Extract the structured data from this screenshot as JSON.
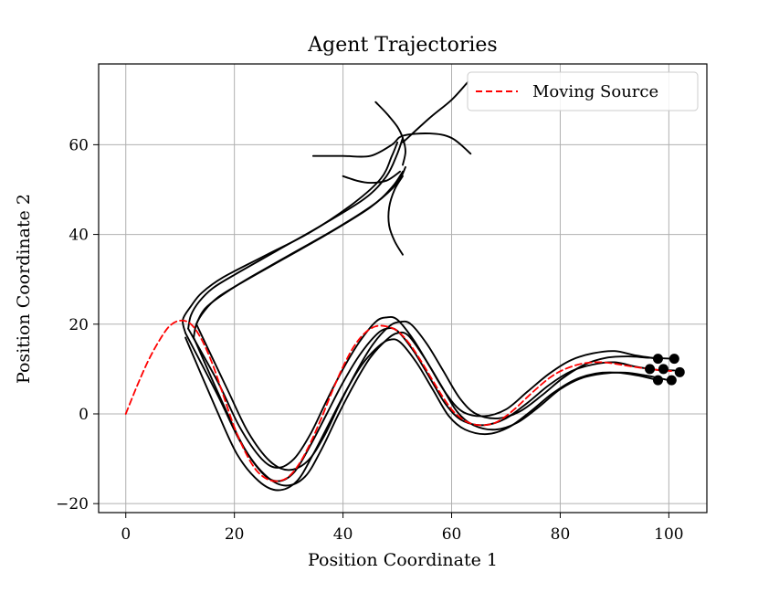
{
  "chart_data": {
    "type": "line",
    "title": "Agent Trajectories",
    "xlabel": "Position Coordinate 1",
    "ylabel": "Position Coordinate 2",
    "xlim": [
      -5,
      107
    ],
    "ylim": [
      -22,
      78
    ],
    "xticks": [
      0,
      20,
      40,
      60,
      80,
      100
    ],
    "yticks": [
      -20,
      0,
      20,
      40,
      60
    ],
    "xtick_labels": [
      "0",
      "20",
      "40",
      "60",
      "80",
      "100"
    ],
    "ytick_labels": [
      "−20",
      "0",
      "20",
      "40",
      "60"
    ],
    "grid": true,
    "legend_position": "top-right",
    "colors": {
      "source": "#ff0000",
      "agents": "#000000",
      "grid": "#b0b0b0"
    },
    "series": [
      {
        "name": "Moving Source",
        "style": "dashed",
        "color": "#ff0000",
        "points": [
          [
            0,
            0
          ],
          [
            2,
            6
          ],
          [
            4,
            11.5
          ],
          [
            6,
            16
          ],
          [
            8,
            19.5
          ],
          [
            10,
            20.8
          ],
          [
            12,
            20
          ],
          [
            14,
            16.5
          ],
          [
            16,
            11
          ],
          [
            18,
            4
          ],
          [
            20,
            -3
          ],
          [
            22,
            -8.5
          ],
          [
            24,
            -12.5
          ],
          [
            26,
            -14.5
          ],
          [
            28,
            -15
          ],
          [
            30,
            -14
          ],
          [
            32,
            -11
          ],
          [
            34,
            -6.5
          ],
          [
            36,
            -1
          ],
          [
            38,
            5
          ],
          [
            40,
            10.5
          ],
          [
            42,
            15
          ],
          [
            44,
            18
          ],
          [
            46,
            19.5
          ],
          [
            48,
            19.5
          ],
          [
            50,
            18.5
          ],
          [
            52,
            16
          ],
          [
            54,
            12.5
          ],
          [
            56,
            8.5
          ],
          [
            58,
            4.5
          ],
          [
            60,
            1
          ],
          [
            62,
            -1.2
          ],
          [
            64,
            -2.3
          ],
          [
            66,
            -2.5
          ],
          [
            68,
            -2
          ],
          [
            70,
            -0.5
          ],
          [
            72,
            1.5
          ],
          [
            74,
            3.8
          ],
          [
            76,
            6
          ],
          [
            78,
            8
          ],
          [
            80,
            9.5
          ],
          [
            82,
            10.5
          ],
          [
            84,
            11.2
          ],
          [
            86,
            11.5
          ],
          [
            88,
            11.5
          ],
          [
            90,
            11.2
          ],
          [
            92,
            10.8
          ],
          [
            94,
            10.4
          ],
          [
            96,
            10.1
          ],
          [
            98,
            9.8
          ],
          [
            100,
            9.6
          ],
          [
            101,
            9.5
          ]
        ]
      },
      {
        "name": "",
        "style": "solid",
        "color": "#000000",
        "points": [
          [
            11,
            18
          ],
          [
            17,
            4
          ],
          [
            21,
            -6
          ],
          [
            25,
            -13
          ],
          [
            28,
            -15
          ],
          [
            31,
            -13
          ],
          [
            34,
            -7
          ],
          [
            37,
            0
          ],
          [
            40,
            7
          ],
          [
            43,
            13
          ],
          [
            46,
            17.5
          ],
          [
            48,
            19
          ],
          [
            50,
            18.5
          ],
          [
            53,
            14
          ],
          [
            56,
            8
          ],
          [
            59,
            2
          ],
          [
            62,
            -1.5
          ],
          [
            66,
            -2.5
          ],
          [
            70,
            -1
          ],
          [
            74,
            2.5
          ],
          [
            78,
            6.5
          ],
          [
            82,
            9.5
          ],
          [
            86,
            11
          ],
          [
            90,
            11.5
          ],
          [
            94,
            10.5
          ],
          [
            98,
            9.8
          ],
          [
            101,
            9.7
          ]
        ]
      },
      {
        "name": "",
        "style": "solid",
        "color": "#000000",
        "points": [
          [
            11.5,
            19
          ],
          [
            17,
            7
          ],
          [
            21,
            -3
          ],
          [
            25,
            -10
          ],
          [
            28,
            -12
          ],
          [
            31,
            -10
          ],
          [
            34,
            -4.5
          ],
          [
            37,
            3
          ],
          [
            40,
            10
          ],
          [
            43,
            16
          ],
          [
            46,
            20.5
          ],
          [
            48,
            21.5
          ],
          [
            50,
            21
          ],
          [
            53,
            16.5
          ],
          [
            56,
            10.5
          ],
          [
            59,
            4.5
          ],
          [
            62,
            0.5
          ],
          [
            66,
            -0.5
          ],
          [
            70,
            1
          ],
          [
            74,
            5
          ],
          [
            78,
            9
          ],
          [
            82,
            12
          ],
          [
            86,
            13.5
          ],
          [
            90,
            14
          ],
          [
            94,
            13
          ],
          [
            98,
            12.3
          ]
        ]
      },
      {
        "name": "",
        "style": "solid",
        "color": "#000000",
        "points": [
          [
            11,
            17
          ],
          [
            16.5,
            1.5
          ],
          [
            20.5,
            -9
          ],
          [
            24.5,
            -15
          ],
          [
            28,
            -17
          ],
          [
            31.5,
            -15
          ],
          [
            34.5,
            -9
          ],
          [
            37.5,
            -2
          ],
          [
            40.5,
            5
          ],
          [
            43.5,
            11
          ],
          [
            46.5,
            15
          ],
          [
            48.5,
            16.5
          ],
          [
            50.5,
            16
          ],
          [
            53.5,
            11.5
          ],
          [
            56.5,
            5.5
          ],
          [
            59.5,
            -0.5
          ],
          [
            62.5,
            -3.5
          ],
          [
            66.5,
            -4.5
          ],
          [
            70.5,
            -3
          ],
          [
            74.5,
            0.5
          ],
          [
            78.5,
            4.5
          ],
          [
            82.5,
            7.5
          ],
          [
            86.5,
            9
          ],
          [
            90.5,
            9.2
          ],
          [
            94.5,
            8.5
          ],
          [
            98,
            7.5
          ]
        ]
      },
      {
        "name": "",
        "style": "solid",
        "color": "#000000",
        "points": [
          [
            12.5,
            17
          ],
          [
            18,
            2
          ],
          [
            22,
            -8
          ],
          [
            26,
            -14
          ],
          [
            29.5,
            -16
          ],
          [
            33,
            -14
          ],
          [
            36,
            -8
          ],
          [
            39,
            -0.5
          ],
          [
            42,
            6.5
          ],
          [
            45,
            12.5
          ],
          [
            48,
            16.5
          ],
          [
            50,
            18
          ],
          [
            52,
            17.5
          ],
          [
            55,
            12.5
          ],
          [
            58,
            6.5
          ],
          [
            61,
            0.5
          ],
          [
            64,
            -2.5
          ],
          [
            68,
            -3.5
          ],
          [
            72,
            -2
          ],
          [
            76,
            1.5
          ],
          [
            80,
            5.5
          ],
          [
            84,
            8
          ],
          [
            88,
            9
          ],
          [
            92,
            9.2
          ],
          [
            96,
            8.5
          ],
          [
            100,
            7.5
          ]
        ]
      },
      {
        "name": "",
        "style": "solid",
        "color": "#000000",
        "points": [
          [
            13,
            20
          ],
          [
            18.5,
            6
          ],
          [
            22.5,
            -4
          ],
          [
            26.5,
            -10.5
          ],
          [
            30,
            -12.5
          ],
          [
            33.5,
            -10.5
          ],
          [
            36.5,
            -5
          ],
          [
            39.5,
            2.5
          ],
          [
            42.5,
            9.5
          ],
          [
            45.5,
            15.5
          ],
          [
            48.5,
            19.5
          ],
          [
            50.5,
            20.5
          ],
          [
            52.5,
            20
          ],
          [
            55.5,
            15.5
          ],
          [
            58.5,
            9.5
          ],
          [
            61.5,
            3.5
          ],
          [
            64.5,
            0
          ],
          [
            68.5,
            -1
          ],
          [
            72.5,
            0.5
          ],
          [
            76.5,
            4
          ],
          [
            80.5,
            8
          ],
          [
            84.5,
            11
          ],
          [
            88.5,
            12.5
          ],
          [
            92.5,
            12.8
          ],
          [
            96.5,
            12.5
          ],
          [
            101,
            12.3
          ]
        ]
      },
      {
        "name": "",
        "style": "solid",
        "color": "#000000",
        "points": [
          [
            11,
            18
          ],
          [
            10.5,
            21
          ],
          [
            12,
            24
          ],
          [
            14,
            27
          ],
          [
            18,
            30.5
          ],
          [
            26,
            35.5
          ],
          [
            34,
            40.5
          ],
          [
            42,
            47
          ],
          [
            47,
            52.5
          ],
          [
            49,
            57.5
          ],
          [
            50,
            60.5
          ]
        ]
      },
      {
        "name": "",
        "style": "solid",
        "color": "#000000",
        "points": [
          [
            11.5,
            19
          ],
          [
            12,
            22
          ],
          [
            13.5,
            25
          ],
          [
            16,
            28
          ],
          [
            20,
            31
          ],
          [
            28,
            36.5
          ],
          [
            36,
            42
          ],
          [
            44,
            48
          ],
          [
            48,
            53
          ],
          [
            50,
            58
          ],
          [
            51,
            61.5
          ]
        ]
      },
      {
        "name": "",
        "style": "solid",
        "color": "#000000",
        "points": [
          [
            12.5,
            17
          ],
          [
            13,
            20
          ],
          [
            14.5,
            23
          ],
          [
            17,
            26
          ],
          [
            21,
            29
          ],
          [
            29,
            34.5
          ],
          [
            37,
            40
          ],
          [
            45,
            46
          ],
          [
            49,
            50.5
          ],
          [
            51,
            54
          ]
        ]
      },
      {
        "name": "",
        "style": "solid",
        "color": "#000000",
        "points": [
          [
            13,
            20
          ],
          [
            14,
            22.5
          ],
          [
            15.5,
            24.5
          ],
          [
            19,
            27.5
          ],
          [
            23,
            30.5
          ],
          [
            31,
            36
          ],
          [
            39,
            41.5
          ],
          [
            46,
            47
          ],
          [
            50,
            51.5
          ],
          [
            51.5,
            55
          ]
        ]
      },
      {
        "name": "",
        "style": "solid",
        "color": "#000000",
        "points": [
          [
            34.5,
            57.5
          ],
          [
            40,
            57.5
          ],
          [
            45,
            57.5
          ],
          [
            49,
            60
          ],
          [
            51,
            62
          ],
          [
            56,
            62.5
          ],
          [
            60,
            61.5
          ],
          [
            63.5,
            58
          ]
        ]
      },
      {
        "name": "",
        "style": "solid",
        "color": "#000000",
        "points": [
          [
            46,
            69.5
          ],
          [
            48,
            67
          ],
          [
            50,
            64
          ],
          [
            51,
            61.5
          ],
          [
            51.5,
            58.5
          ],
          [
            51,
            55.5
          ]
        ]
      },
      {
        "name": "",
        "style": "solid",
        "color": "#000000",
        "points": [
          [
            51,
            60.5
          ],
          [
            56,
            66
          ],
          [
            60,
            70
          ],
          [
            63,
            74
          ]
        ]
      },
      {
        "name": "",
        "style": "solid",
        "color": "#000000",
        "points": [
          [
            40,
            53
          ],
          [
            42.5,
            52
          ],
          [
            45,
            51.5
          ],
          [
            48,
            52
          ],
          [
            50.5,
            54
          ]
        ]
      },
      {
        "name": "",
        "style": "solid",
        "color": "#000000",
        "points": [
          [
            51,
            53
          ],
          [
            49.5,
            50
          ],
          [
            48.5,
            46
          ],
          [
            48.5,
            42
          ],
          [
            49.5,
            38.5
          ],
          [
            51,
            35.5
          ]
        ]
      }
    ],
    "markers": [
      [
        98,
        12.3
      ],
      [
        101,
        12.3
      ],
      [
        96.5,
        10
      ],
      [
        99,
        10
      ],
      [
        102,
        9.3
      ],
      [
        98,
        7.5
      ],
      [
        100.5,
        7.5
      ]
    ]
  }
}
